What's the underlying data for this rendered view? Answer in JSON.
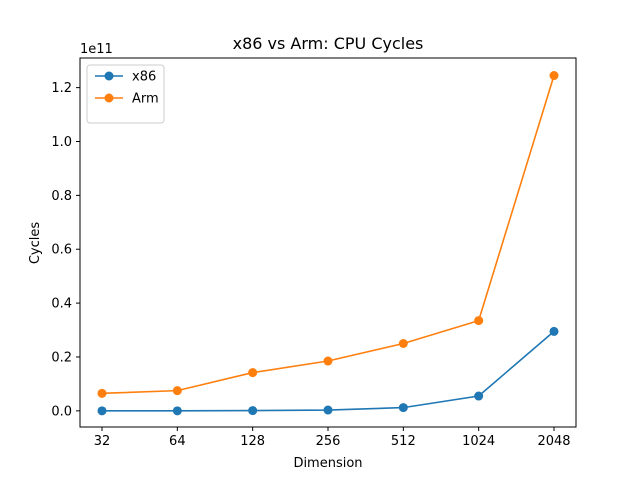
{
  "chart_data": {
    "type": "line",
    "title": "x86 vs Arm: CPU Cycles",
    "xlabel": "Dimension",
    "ylabel": "Cycles",
    "y_offset_label": "1e11",
    "categories": [
      "32",
      "64",
      "128",
      "256",
      "512",
      "1024",
      "2048"
    ],
    "yticks": [
      0.0,
      0.2,
      0.4,
      0.6,
      0.8,
      1.0,
      1.2
    ],
    "ytick_labels": [
      "0.0",
      "0.2",
      "0.4",
      "0.6",
      "0.8",
      "1.0",
      "1.2"
    ],
    "y_scale": 100000000000.0,
    "ylim": [
      -0.06,
      1.31
    ],
    "grid": false,
    "legend_position": "upper left",
    "series": [
      {
        "name": "x86",
        "color": "#1f77b4",
        "values": [
          0.0,
          0.0,
          0.001,
          0.003,
          0.012,
          0.055,
          0.295
        ]
      },
      {
        "name": "Arm",
        "color": "#ff7f0e",
        "values": [
          0.065,
          0.075,
          0.142,
          0.185,
          0.25,
          0.335,
          1.245
        ]
      }
    ]
  }
}
